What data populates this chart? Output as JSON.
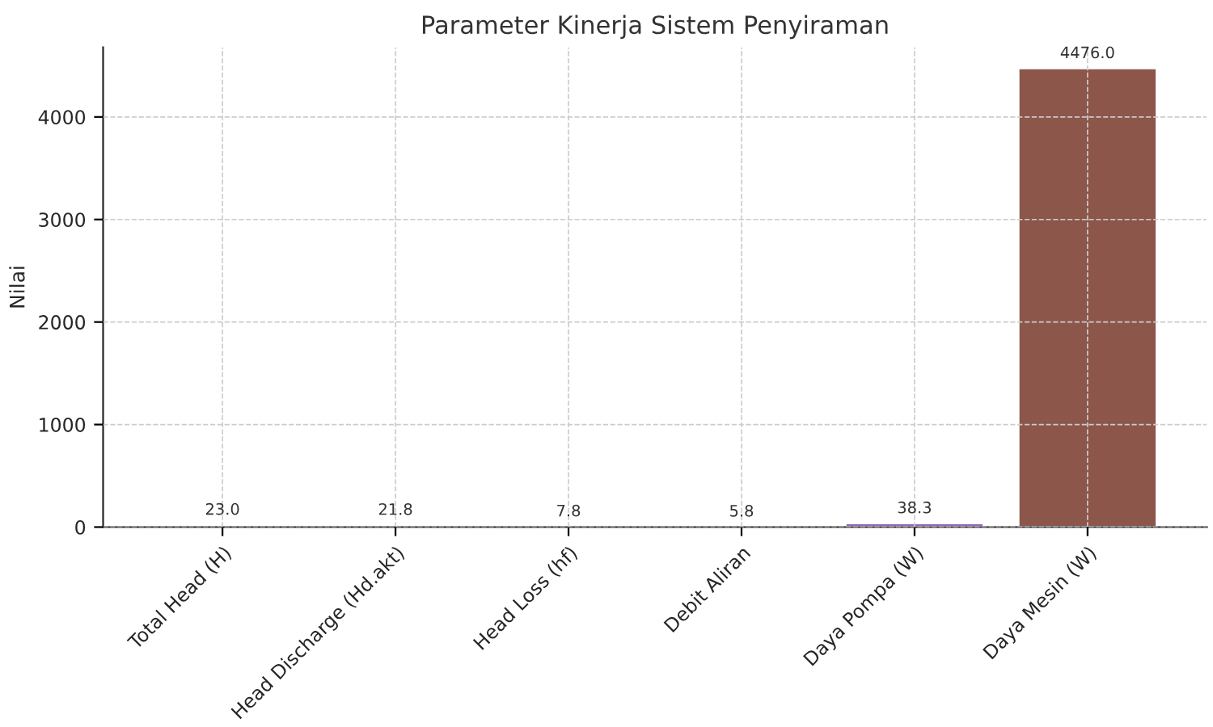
{
  "chart_data": {
    "type": "bar",
    "title": "Parameter Kinerja Sistem Penyiraman",
    "ylabel": "Nilai",
    "categories": [
      "Total Head (H)",
      "Head Discharge (Hd.akt)",
      "Head Loss (hf)",
      "Debit Aliran",
      "Daya Pompa (W)",
      "Daya Mesin (W)"
    ],
    "values": [
      23.0,
      21.8,
      7.8,
      5.8,
      38.3,
      4476.0
    ],
    "colors": [
      "#1f77b4",
      "#2ca02c",
      "#ff7f0e",
      "#d62728",
      "#9467bd",
      "#8c564b"
    ],
    "ylim": [
      0,
      4680
    ],
    "yticks": [
      0,
      1000,
      2000,
      3000,
      4000
    ],
    "grid": true,
    "value_labels": [
      "23.0",
      "21.8",
      "7.8",
      "5.8",
      "38.3",
      "4476.0"
    ]
  }
}
